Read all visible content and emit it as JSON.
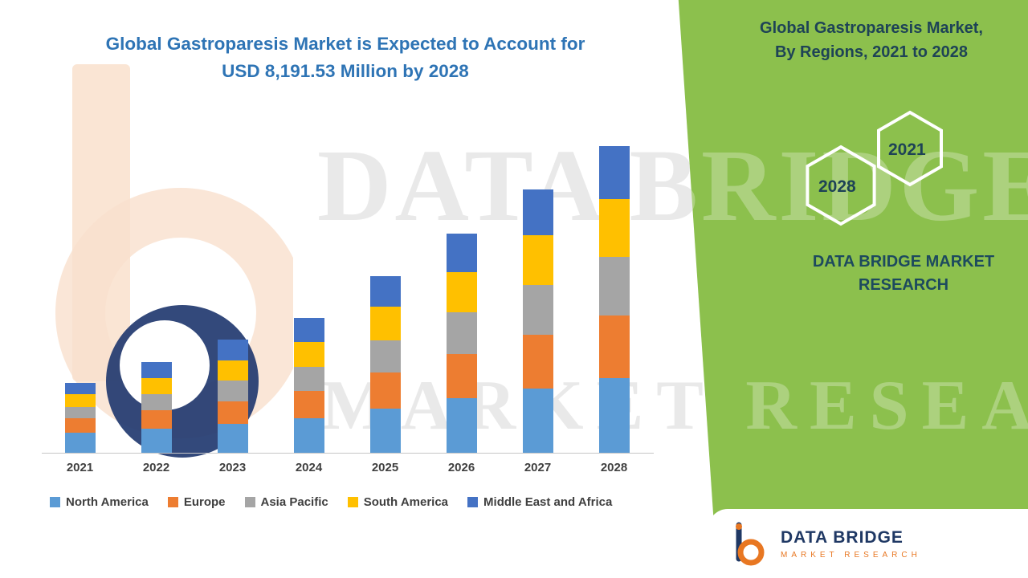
{
  "headline": {
    "line1": "Global Gastroparesis Market is Expected to Account for",
    "line2": "USD 8,191.53 Million by 2028"
  },
  "side_panel": {
    "title_line1": "Global Gastroparesis Market,",
    "title_line2": "By Regions, 2021 to 2028",
    "hexagon_left_year": "2028",
    "hexagon_right_year": "2021",
    "brand_line1": "DATA BRIDGE MARKET",
    "brand_line2": "RESEARCH",
    "background_color": "#8CC04D",
    "text_color": "#1E4356"
  },
  "watermark": {
    "line1": "DATA BRIDGE",
    "line2": "MARKET RESEARCH"
  },
  "logo_card": {
    "name": "DATA BRIDGE",
    "subtitle": "MARKET RESEARCH",
    "name_color": "#1F3864",
    "subtitle_color": "#E87722"
  },
  "chart_data": {
    "type": "bar",
    "stacked": true,
    "title": "Global Gastroparesis Market is Expected to Account for USD 8,191.53 Million by 2028",
    "unit": "USD Million",
    "xlabel": "",
    "ylabel": "",
    "ylim": [
      0,
      8200
    ],
    "grid": false,
    "axis_labels_visible": false,
    "legend_position": "bottom",
    "categories": [
      "2021",
      "2022",
      "2023",
      "2024",
      "2025",
      "2026",
      "2027",
      "2028"
    ],
    "series": [
      {
        "name": "North America",
        "color": "#5B9BD5",
        "values": [
          536,
          643,
          772,
          922,
          1179,
          1458,
          1715,
          1994
        ]
      },
      {
        "name": "Europe",
        "color": "#ED7D31",
        "values": [
          386,
          493,
          600,
          729,
          965,
          1179,
          1436,
          1672
        ]
      },
      {
        "name": "Asia Pacific",
        "color": "#A5A5A5",
        "values": [
          300,
          429,
          557,
          643,
          858,
          1115,
          1329,
          1565
        ]
      },
      {
        "name": "South America",
        "color": "#FFC000",
        "values": [
          343,
          429,
          536,
          665,
          900,
          1072,
          1329,
          1544
        ]
      },
      {
        "name": "Middle East and Africa",
        "color": "#4472C4",
        "values": [
          300,
          429,
          557,
          643,
          815,
          1029,
          1222,
          1416.53
        ]
      }
    ],
    "totals_estimated": [
      1865,
      2423,
      3022,
      3602,
      4717,
      5853,
      7031,
      8191.53
    ]
  }
}
